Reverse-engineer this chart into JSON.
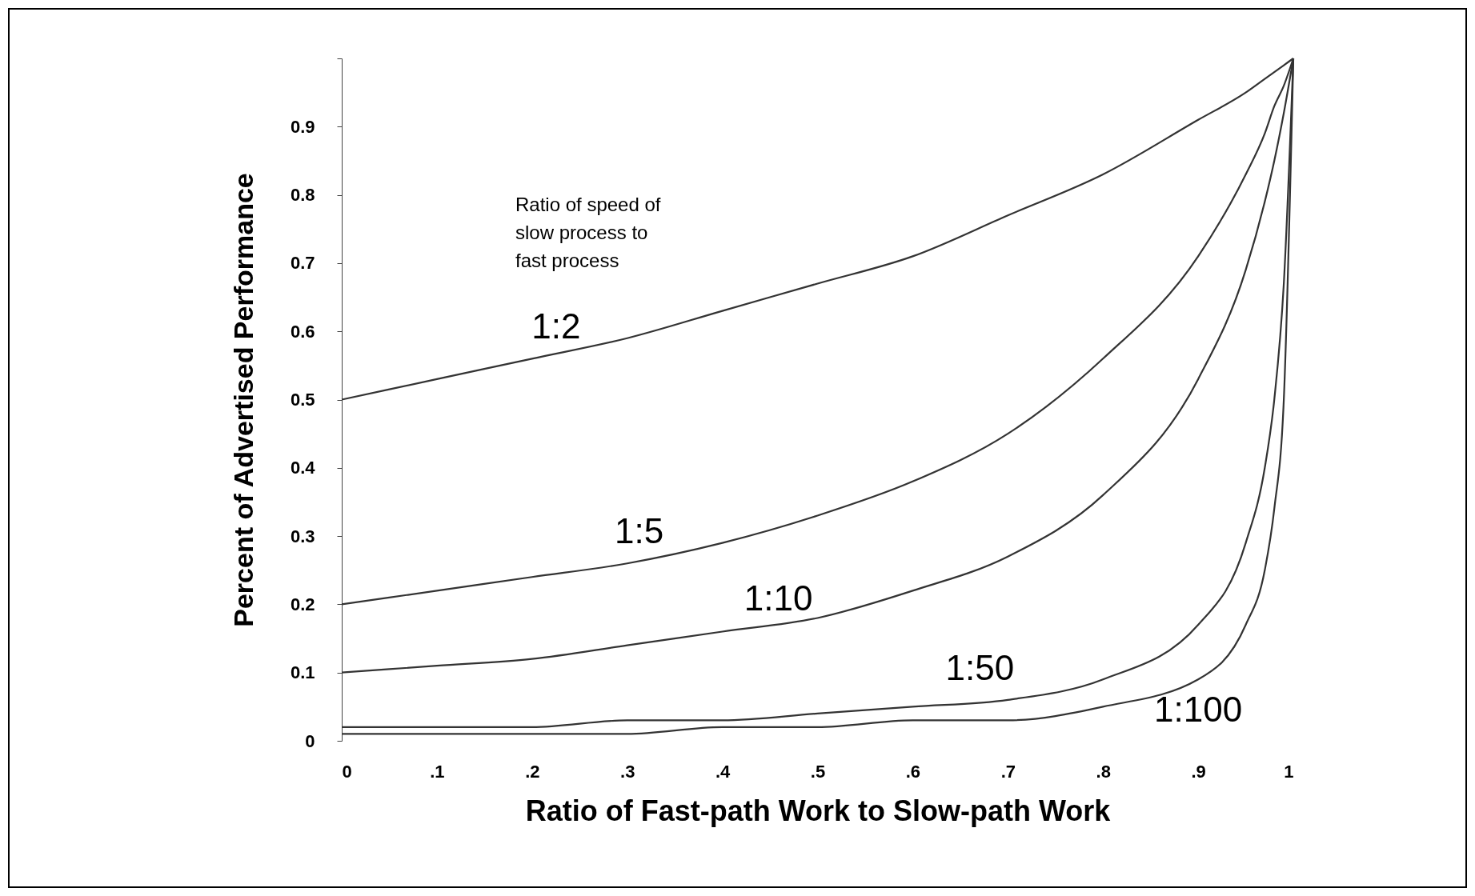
{
  "chart_data": {
    "type": "line",
    "xlabel": "Ratio of Fast-path Work to Slow-path Work",
    "ylabel": "Percent of Advertised Performance",
    "annotations": [
      "Ratio of speed of slow process to fast process"
    ],
    "x": [
      0,
      0.1,
      0.2,
      0.3,
      0.4,
      0.5,
      0.6,
      0.7,
      0.8,
      0.9,
      0.95,
      0.97,
      0.98,
      0.99,
      1
    ],
    "series": [
      {
        "name": "1:2",
        "color": "#333333",
        "values": [
          0.5,
          0.53,
          0.56,
          0.59,
          0.63,
          0.67,
          0.71,
          0.77,
          0.83,
          0.91,
          0.95,
          0.97,
          0.98,
          0.99,
          1
        ]
      },
      {
        "name": "1:5",
        "color": "#333333",
        "values": [
          0.2,
          0.22,
          0.24,
          0.26,
          0.29,
          0.33,
          0.38,
          0.45,
          0.56,
          0.71,
          0.83,
          0.89,
          0.93,
          0.96,
          1
        ]
      },
      {
        "name": "1:10",
        "color": "#333333",
        "values": [
          0.1,
          0.11,
          0.12,
          0.14,
          0.16,
          0.18,
          0.22,
          0.27,
          0.36,
          0.53,
          0.69,
          0.79,
          0.85,
          0.92,
          1
        ]
      },
      {
        "name": "1:50",
        "color": "#333333",
        "values": [
          0.02,
          0.02,
          0.02,
          0.03,
          0.03,
          0.04,
          0.05,
          0.06,
          0.09,
          0.17,
          0.29,
          0.4,
          0.5,
          0.67,
          1
        ]
      },
      {
        "name": "1:100",
        "color": "#333333",
        "values": [
          0.01,
          0.01,
          0.01,
          0.01,
          0.02,
          0.02,
          0.03,
          0.03,
          0.05,
          0.09,
          0.17,
          0.25,
          0.34,
          0.5,
          1
        ]
      }
    ],
    "xlim": [
      0,
      1
    ],
    "xticks": [
      0,
      {
        "value": 0.1,
        "label": ".1"
      },
      {
        "value": 0.2,
        "label": ".2"
      },
      {
        "value": 0.3,
        "label": ".3"
      },
      {
        "value": 0.4,
        "label": ".4"
      },
      {
        "value": 0.5,
        "label": ".5"
      },
      {
        "value": 0.6,
        "label": ".6"
      },
      {
        "value": 0.7,
        "label": ".7"
      },
      {
        "value": 0.8,
        "label": ".8"
      },
      {
        "value": 0.9,
        "label": ".9"
      },
      1
    ],
    "ylim": [
      0,
      1
    ],
    "yticks": [
      0,
      0.1,
      0.2,
      0.3,
      0.4,
      0.5,
      0.6,
      0.7,
      0.8,
      0.9,
      {
        "value": 1,
        "label": null
      }
    ],
    "grid": false,
    "legend": false,
    "line_style": "solid"
  }
}
